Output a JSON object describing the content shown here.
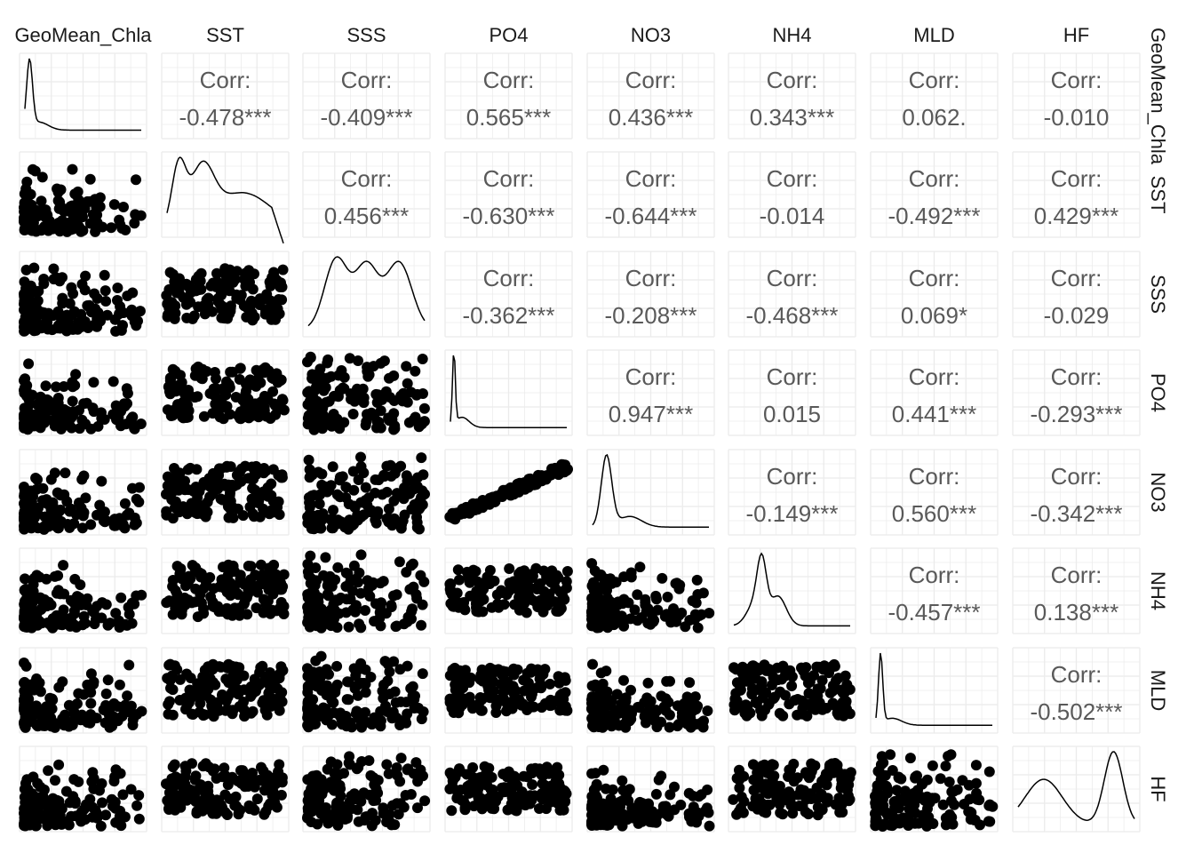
{
  "chart_data": {
    "type": "scatter-matrix",
    "variables": [
      "GeoMean_Chla",
      "SST",
      "SSS",
      "PO4",
      "NO3",
      "NH4",
      "MLD",
      "HF"
    ],
    "column_headers": [
      "GeoMean_Chla",
      "SST",
      "SSS",
      "PO4",
      "NO3",
      "NH4",
      "MLD",
      "HF"
    ],
    "row_headers": [
      "GeoMean_Chla",
      "SST",
      "SSS",
      "PO4",
      "NO3",
      "NH4",
      "MLD",
      "HF"
    ],
    "corr_label": "Corr:",
    "correlations": [
      {
        "row": 0,
        "col": 1,
        "value": "-0.478***"
      },
      {
        "row": 0,
        "col": 2,
        "value": "-0.409***"
      },
      {
        "row": 0,
        "col": 3,
        "value": "0.565***"
      },
      {
        "row": 0,
        "col": 4,
        "value": "0.436***"
      },
      {
        "row": 0,
        "col": 5,
        "value": "0.343***"
      },
      {
        "row": 0,
        "col": 6,
        "value": "0.062."
      },
      {
        "row": 0,
        "col": 7,
        "value": "-0.010"
      },
      {
        "row": 1,
        "col": 2,
        "value": "0.456***"
      },
      {
        "row": 1,
        "col": 3,
        "value": "-0.630***"
      },
      {
        "row": 1,
        "col": 4,
        "value": "-0.644***"
      },
      {
        "row": 1,
        "col": 5,
        "value": "-0.014"
      },
      {
        "row": 1,
        "col": 6,
        "value": "-0.492***"
      },
      {
        "row": 1,
        "col": 7,
        "value": "0.429***"
      },
      {
        "row": 2,
        "col": 3,
        "value": "-0.362***"
      },
      {
        "row": 2,
        "col": 4,
        "value": "-0.208***"
      },
      {
        "row": 2,
        "col": 5,
        "value": "-0.468***"
      },
      {
        "row": 2,
        "col": 6,
        "value": "0.069*"
      },
      {
        "row": 2,
        "col": 7,
        "value": "-0.029"
      },
      {
        "row": 3,
        "col": 4,
        "value": "0.947***"
      },
      {
        "row": 3,
        "col": 5,
        "value": "0.015"
      },
      {
        "row": 3,
        "col": 6,
        "value": "0.441***"
      },
      {
        "row": 3,
        "col": 7,
        "value": "-0.293***"
      },
      {
        "row": 4,
        "col": 5,
        "value": "-0.149***"
      },
      {
        "row": 4,
        "col": 6,
        "value": "0.560***"
      },
      {
        "row": 4,
        "col": 7,
        "value": "-0.342***"
      },
      {
        "row": 5,
        "col": 6,
        "value": "-0.457***"
      },
      {
        "row": 5,
        "col": 7,
        "value": "0.138***"
      },
      {
        "row": 6,
        "col": 7,
        "value": "-0.502***"
      }
    ],
    "diagonal": "density",
    "lower": "scatter",
    "grid": true,
    "colors": {
      "points": "#000000",
      "grid": "#ebebeb",
      "corr_text": "#595959",
      "strip_text": "#1a1a1a"
    }
  }
}
